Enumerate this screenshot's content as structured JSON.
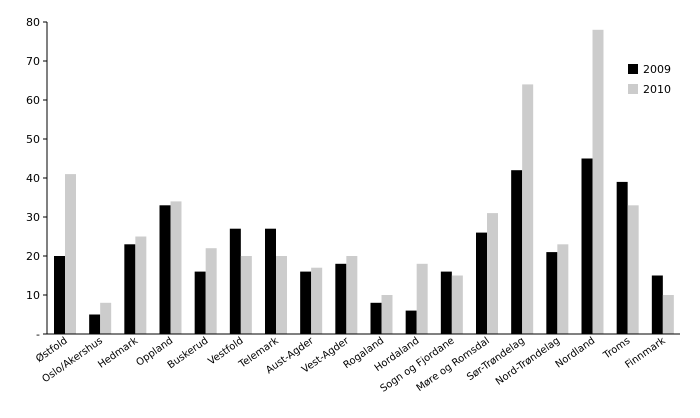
{
  "chart_data": {
    "type": "bar",
    "categories": [
      "Østfold",
      "Oslo/Akershus",
      "Hedmark",
      "Oppland",
      "Buskerud",
      "Vestfold",
      "Telemark",
      "Aust-Agder",
      "Vest-Agder",
      "Rogaland",
      "Hordaland",
      "Sogn og Fjordane",
      "Møre og Romsdal",
      "Sør-Trøndelag",
      "Nord-Trøndelag",
      "Nordland",
      "Troms",
      "Finnmark"
    ],
    "series": [
      {
        "name": "2009",
        "color": "#000000",
        "values": [
          20,
          5,
          23,
          33,
          16,
          27,
          27,
          16,
          18,
          8,
          6,
          16,
          26,
          42,
          21,
          45,
          39,
          15
        ]
      },
      {
        "name": "2010",
        "color": "#cccccc",
        "values": [
          41,
          8,
          25,
          34,
          22,
          20,
          20,
          17,
          20,
          10,
          18,
          15,
          31,
          64,
          23,
          78,
          33,
          10
        ]
      }
    ],
    "title": "",
    "xlabel": "",
    "ylabel": "",
    "ylim": [
      0,
      80
    ],
    "yticks": [
      "-",
      "10",
      "20",
      "30",
      "40",
      "50",
      "60",
      "70",
      "80"
    ],
    "grid": false,
    "legend_position": "top-right"
  }
}
